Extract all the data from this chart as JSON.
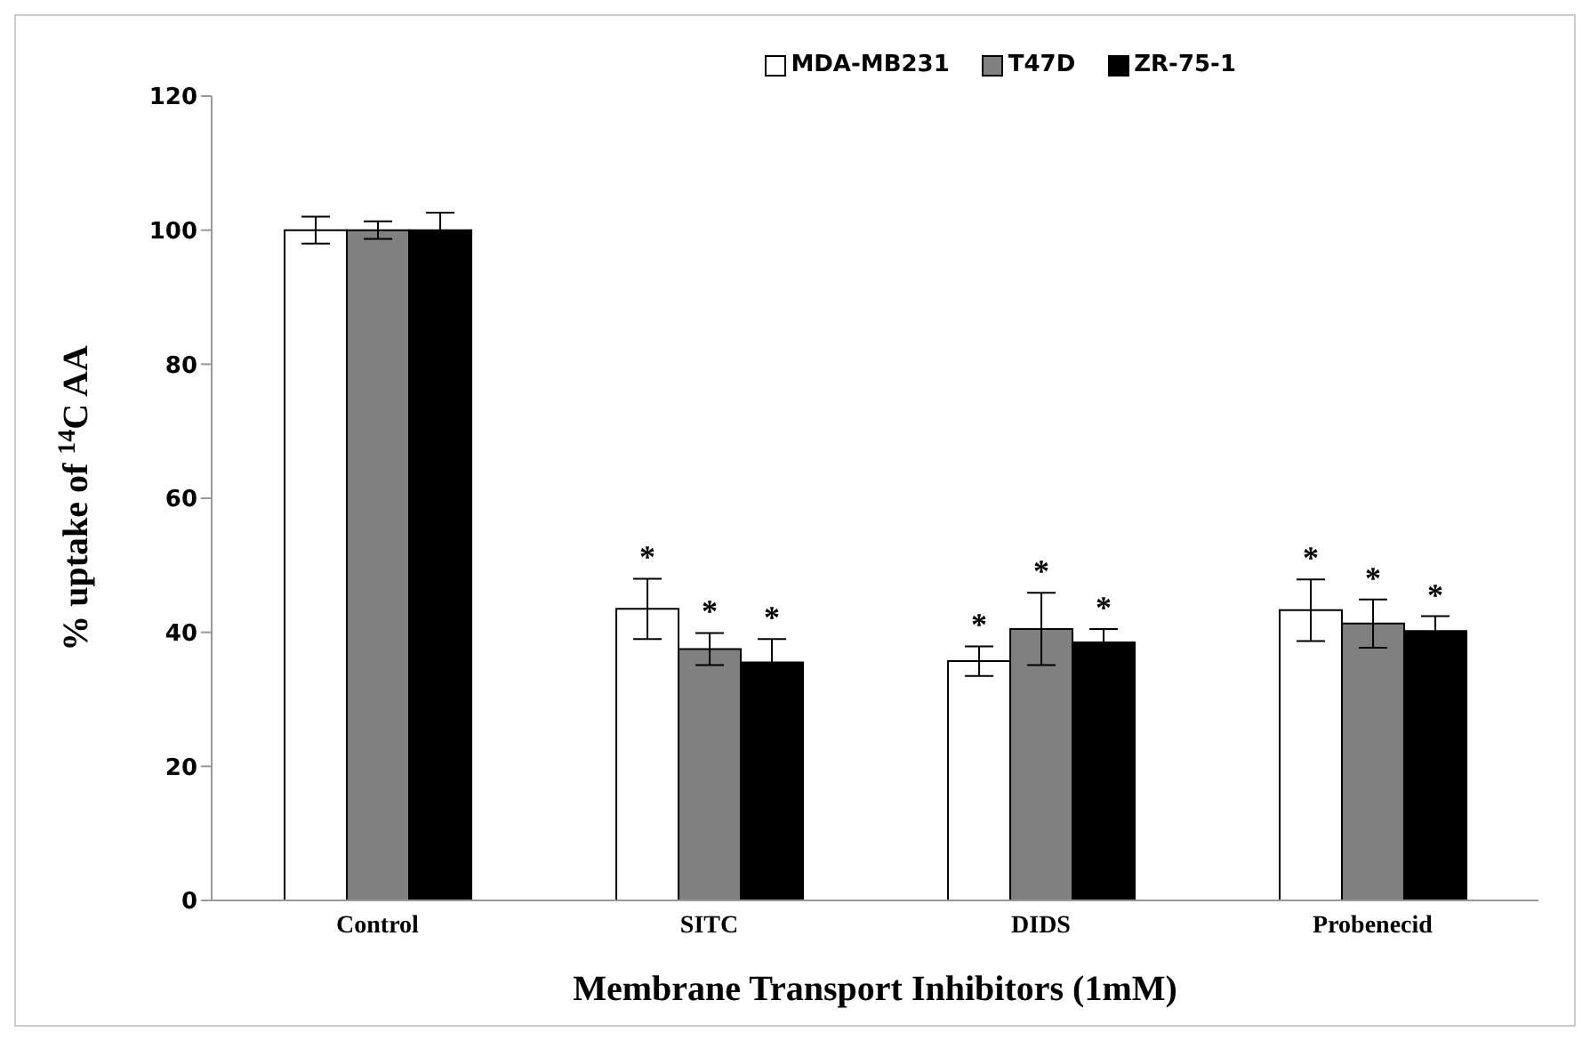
{
  "chart_data": {
    "type": "bar",
    "xlabel": "Membrane Transport Inhibitors (1mM)",
    "ylabel": "% uptake of $^{14}$C AA",
    "categories": [
      "Control",
      "SITC",
      "DIDS",
      "Probenecid"
    ],
    "series": [
      {
        "name": "MDA-MB231",
        "color": "#ffffff",
        "values": [
          100,
          43.5,
          35.7,
          43.3
        ],
        "errors": [
          2,
          4.5,
          2.2,
          4.6
        ],
        "value_labels": [
          null,
          "*",
          "*",
          "*"
        ]
      },
      {
        "name": "T47D",
        "color": "#808080",
        "values": [
          100,
          37.5,
          40.5,
          41.3
        ],
        "errors": [
          1.3,
          2.4,
          5.4,
          3.6
        ],
        "value_labels": [
          null,
          "*",
          "*",
          "*"
        ]
      },
      {
        "name": "ZR-75-1",
        "color": "#000000",
        "values": [
          100,
          35.5,
          38.5,
          40.2
        ],
        "errors": [
          2.6,
          3.5,
          2,
          2.2
        ],
        "value_labels": [
          null,
          "*",
          "*",
          "*"
        ]
      }
    ],
    "ylim": [
      0,
      120
    ],
    "yticks": [
      0,
      20,
      40,
      60,
      80,
      100,
      120
    ],
    "legend": "top right"
  }
}
